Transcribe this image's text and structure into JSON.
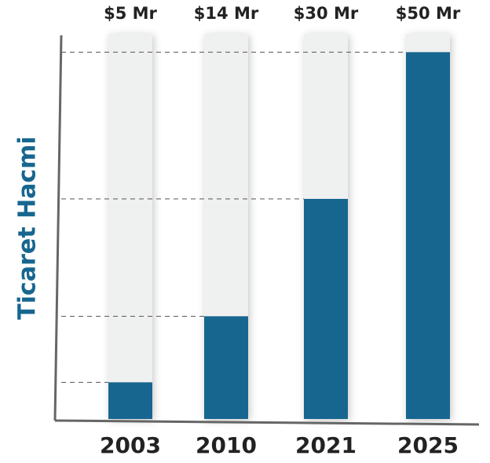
{
  "chart_data": {
    "type": "bar",
    "y_label": "Ticaret Hacmi",
    "categories": [
      "2003",
      "2010",
      "2021",
      "2025"
    ],
    "values": [
      5,
      14,
      30,
      50
    ],
    "value_labels": [
      "$5 Mr",
      "$14 Mr",
      "$30 Mr",
      "$50 Mr"
    ],
    "color": "#17668f",
    "track_color": "#eff0f0",
    "ylim": [
      0,
      52.5
    ]
  }
}
